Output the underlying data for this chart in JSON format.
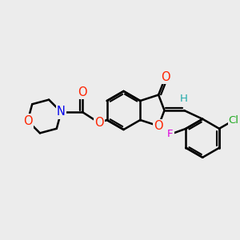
{
  "bg_color": "#ececec",
  "bond_color": "#000000",
  "bond_width": 1.8,
  "atom_colors": {
    "O": "#ff2200",
    "N": "#0000ee",
    "Cl": "#22aa22",
    "F": "#dd00dd",
    "H": "#22aaaa",
    "C": "#000000"
  },
  "font_size": 9.5,
  "fig_size": [
    3.0,
    3.0
  ],
  "dpi": 100,
  "xlim": [
    0,
    10
  ],
  "ylim": [
    0,
    10
  ]
}
